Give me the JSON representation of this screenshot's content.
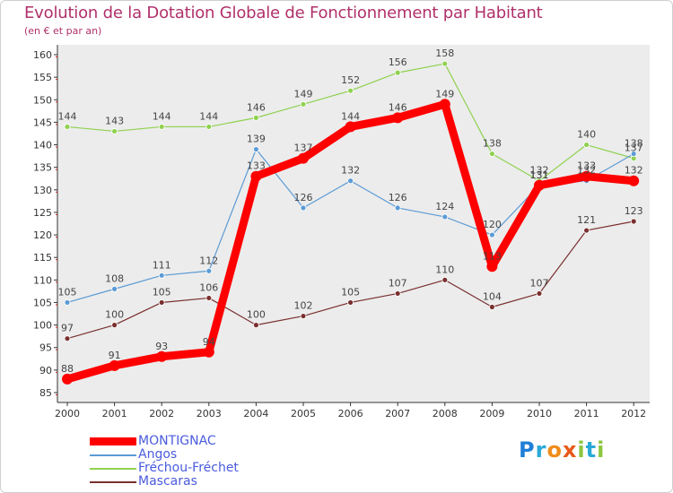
{
  "title": "Evolution de la Dotation Globale de Fonctionnement par Habitant",
  "subtitle": "(en € et par an)",
  "colors": {
    "title": "#b0306a",
    "plot_bg": "#ececec",
    "legend_text": "#4a5bdc"
  },
  "chart_data": {
    "type": "line",
    "title": "Evolution de la Dotation Globale de Fonctionnement par Habitant",
    "subtitle": "(en € et par an)",
    "xlabel": "",
    "ylabel": "",
    "categories": [
      "2000",
      "2001",
      "2002",
      "2003",
      "2004",
      "2005",
      "2006",
      "2007",
      "2008",
      "2009",
      "2010",
      "2011",
      "2012"
    ],
    "ylim": [
      85,
      160
    ],
    "yticks": [
      85,
      90,
      95,
      100,
      105,
      110,
      115,
      120,
      125,
      130,
      135,
      140,
      145,
      150,
      155,
      160
    ],
    "grid": false,
    "legend_position": "bottom-left",
    "series": [
      {
        "name": "MONTIGNAC",
        "color": "#ff0000",
        "emphasis": "thick",
        "values": [
          88,
          91,
          93,
          94,
          133,
          137,
          144,
          146,
          149,
          113,
          131,
          133,
          132
        ],
        "labels": [
          "88",
          "91",
          "93",
          "94",
          "133",
          "137",
          "144",
          "146",
          "149",
          "113",
          "131",
          "133",
          "132"
        ]
      },
      {
        "name": "Angos",
        "color": "#5b9bd5",
        "values": [
          105,
          108,
          111,
          112,
          139,
          126,
          132,
          126,
          124,
          120,
          131,
          132,
          138
        ],
        "labels": [
          "105",
          "108",
          "111",
          "112",
          "139",
          "126",
          "132",
          "126",
          "124",
          "120",
          "131",
          "132",
          "138"
        ]
      },
      {
        "name": "Fréchou-Fréchet",
        "color": "#8fd14f",
        "values": [
          144,
          143,
          144,
          144,
          146,
          149,
          152,
          156,
          158,
          138,
          132,
          140,
          137
        ],
        "labels": [
          "144",
          "143",
          "144",
          "144",
          "146",
          "149",
          "152",
          "156",
          "158",
          "138",
          "132",
          "140",
          "137"
        ]
      },
      {
        "name": "Mascaras",
        "color": "#7a2f2f",
        "values": [
          97,
          100,
          105,
          106,
          100,
          102,
          105,
          107,
          110,
          104,
          107,
          121,
          123
        ],
        "labels": [
          "97",
          "100",
          "105",
          "106",
          "100",
          "102",
          "105",
          "107",
          "110",
          "104",
          "107",
          "121",
          "123"
        ]
      }
    ]
  },
  "legend": {
    "items": [
      "MONTIGNAC",
      "Angos",
      "Fréchou-Fréchet",
      "Mascaras"
    ]
  },
  "logo": {
    "text": "Proxiti",
    "letters": [
      "P",
      "r",
      "o",
      "x",
      "i",
      "t",
      "i"
    ],
    "letter_colors": [
      "#1f7fd6",
      "#2aa8d8",
      "#f08c1a",
      "#e85a1a",
      "#8cc63f",
      "#2aa8d8",
      "#8cc63f"
    ]
  }
}
